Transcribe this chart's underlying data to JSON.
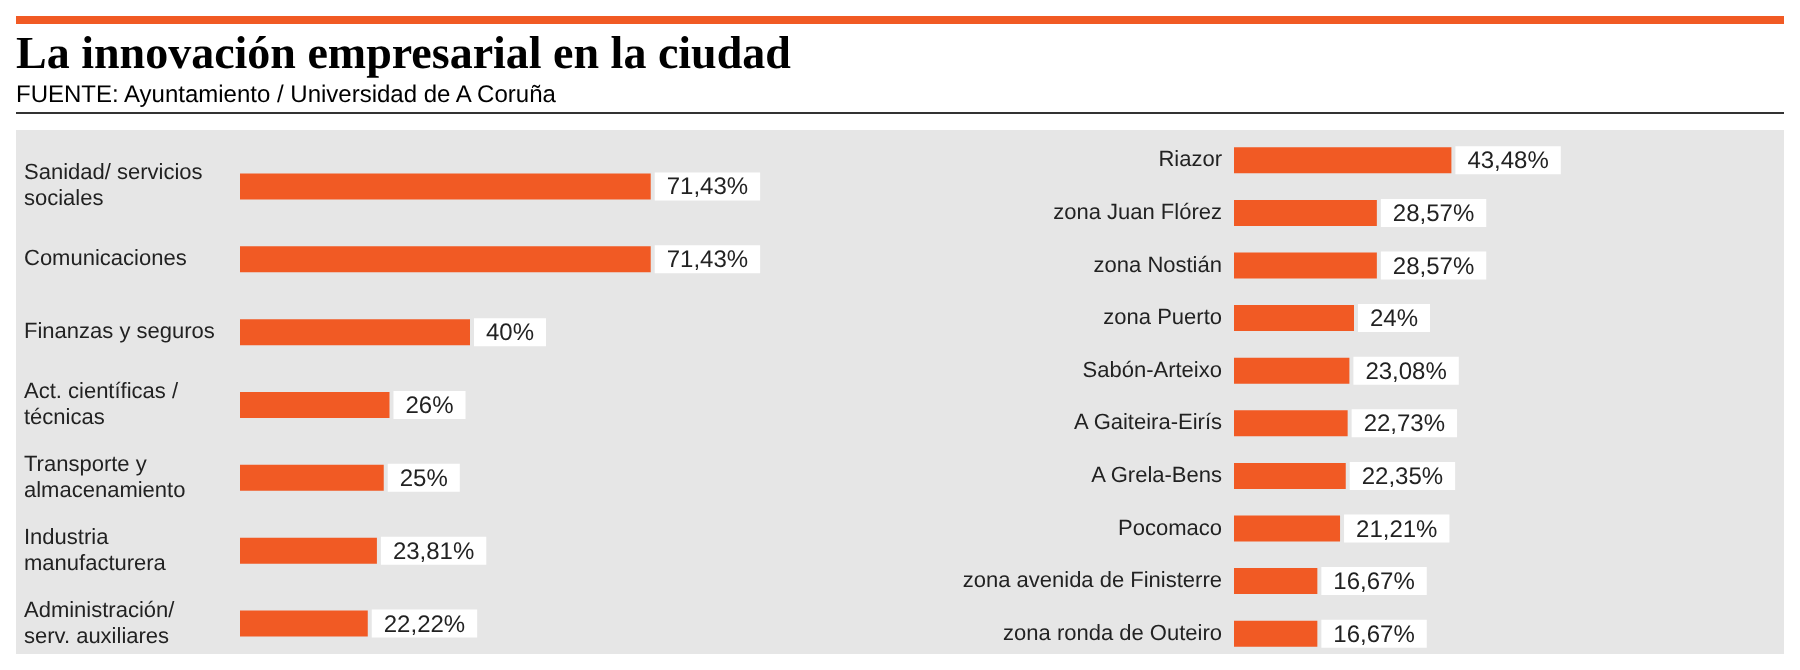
{
  "chart_data": [
    {
      "type": "bar",
      "orientation": "horizontal",
      "title": "La innovación empresarial en la ciudad",
      "subtitle": "FUENTE: Ayuntamiento / Universidad de A Coruña",
      "tick_labels": "y",
      "categories": [
        "Sanidad/ servicios sociales",
        "Comunicaciones",
        "Finanzas y seguros",
        "Act. científicas / técnicas",
        "Transporte y almacenamiento",
        "Industria manufacturera",
        "Administración/ serv. auxiliares"
      ],
      "values": [
        71.43,
        71.43,
        40,
        26,
        25,
        23.81,
        22.22
      ],
      "value_labels": [
        "71,43%",
        "71,43%",
        "40%",
        "26%",
        "25%",
        "23,81%",
        "22,22%"
      ],
      "color": "#f15a24"
    },
    {
      "type": "bar",
      "orientation": "horizontal",
      "tick_labels": "y",
      "categories": [
        "Riazor",
        "zona Juan Flórez",
        "zona Nostián",
        "zona Puerto",
        "Sabón-Arteixo",
        "A Gaiteira-Eirís",
        "A Grela-Bens",
        "Pocomaco",
        "zona avenida de Finisterre",
        "zona ronda de Outeiro"
      ],
      "values": [
        43.48,
        28.57,
        28.57,
        24,
        23.08,
        22.73,
        22.35,
        21.21,
        16.67,
        16.67
      ],
      "value_labels": [
        "43,48%",
        "28,57%",
        "28,57%",
        "24%",
        "23,08%",
        "22,73%",
        "22,35%",
        "21,21%",
        "16,67%",
        "16,67%"
      ],
      "color": "#f15a24"
    }
  ]
}
